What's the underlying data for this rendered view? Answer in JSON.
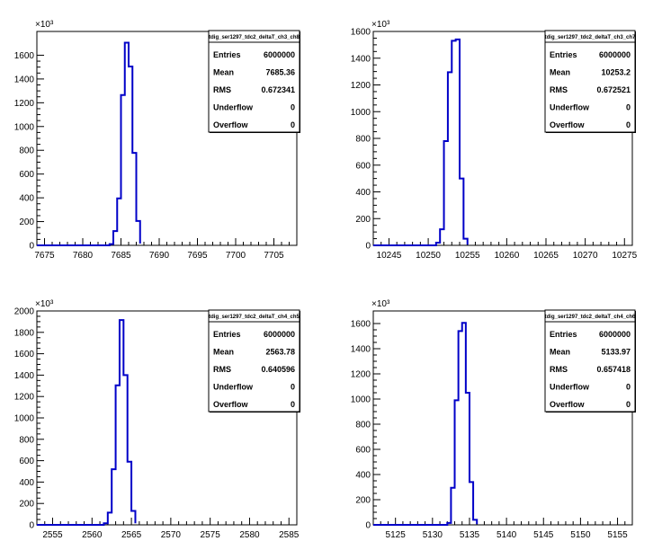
{
  "chart_data": [
    {
      "type": "bar",
      "title": "tdig_ser1297_tdc2_deltaT_ch3_ch8",
      "exponent_label": "×10³",
      "xlim": [
        7674,
        7708
      ],
      "ylim": [
        0,
        1800
      ],
      "xticks": [
        7675,
        7680,
        7685,
        7690,
        7695,
        7700,
        7705
      ],
      "yticks": [
        0,
        200,
        400,
        600,
        800,
        1000,
        1200,
        1400,
        1600
      ],
      "bins": {
        "edges": [
          7683.5,
          7684,
          7684.5,
          7685,
          7685.5,
          7686,
          7686.5,
          7687,
          7687.5
        ],
        "values": [
          10,
          120,
          395,
          1265,
          1705,
          1505,
          778,
          205,
          15
        ]
      },
      "stats": [
        {
          "label": "Entries",
          "value": "6000000"
        },
        {
          "label": "Mean",
          "value": "7685.36"
        },
        {
          "label": "RMS",
          "value": "0.672341"
        },
        {
          "label": "Underflow",
          "value": "0"
        },
        {
          "label": "Overflow",
          "value": "0"
        }
      ]
    },
    {
      "type": "bar",
      "title": "tdig_ser1297_tdc2_deltaT_ch3_ch7",
      "exponent_label": "×10³",
      "xlim": [
        10243,
        10276
      ],
      "ylim": [
        0,
        1600
      ],
      "xticks": [
        10245,
        10250,
        10255,
        10260,
        10265,
        10270,
        10275
      ],
      "yticks": [
        0,
        200,
        400,
        600,
        800,
        1000,
        1200,
        1400,
        1600
      ],
      "bins": {
        "edges": [
          10251,
          10251.5,
          10252,
          10252.5,
          10253,
          10253.5,
          10254,
          10254.5,
          10255
        ],
        "values": [
          20,
          120,
          780,
          1295,
          1530,
          1540,
          500,
          50,
          5
        ]
      },
      "stats": [
        {
          "label": "Entries",
          "value": "6000000"
        },
        {
          "label": "Mean",
          "value": "10253.2"
        },
        {
          "label": "RMS",
          "value": "0.672521"
        },
        {
          "label": "Underflow",
          "value": "0"
        },
        {
          "label": "Overflow",
          "value": "0"
        }
      ]
    },
    {
      "type": "bar",
      "title": "tdig_ser1297_tdc2_deltaT_ch4_ch5",
      "exponent_label": "×10³",
      "xlim": [
        2553,
        2586
      ],
      "ylim": [
        0,
        2000
      ],
      "xticks": [
        2555,
        2560,
        2565,
        2570,
        2575,
        2580,
        2585
      ],
      "yticks": [
        0,
        200,
        400,
        600,
        800,
        1000,
        1200,
        1400,
        1600,
        1800,
        2000
      ],
      "bins": {
        "edges": [
          2561.5,
          2562,
          2562.5,
          2563,
          2563.5,
          2564,
          2564.5,
          2565,
          2565.5
        ],
        "values": [
          15,
          115,
          520,
          1305,
          1915,
          1400,
          590,
          130,
          15
        ]
      },
      "stats": [
        {
          "label": "Entries",
          "value": "6000000"
        },
        {
          "label": "Mean",
          "value": "2563.78"
        },
        {
          "label": "RMS",
          "value": "0.640596"
        },
        {
          "label": "Underflow",
          "value": "0"
        },
        {
          "label": "Overflow",
          "value": "0"
        }
      ]
    },
    {
      "type": "bar",
      "title": "tdig_ser1297_tdc2_deltaT_ch4_ch6",
      "exponent_label": "×10³",
      "xlim": [
        5122,
        5157
      ],
      "ylim": [
        0,
        1700
      ],
      "xticks": [
        5125,
        5130,
        5135,
        5140,
        5145,
        5150,
        5155
      ],
      "yticks": [
        0,
        200,
        400,
        600,
        800,
        1000,
        1200,
        1400,
        1600
      ],
      "bins": {
        "edges": [
          5132,
          5132.5,
          5133,
          5133.5,
          5134,
          5134.5,
          5135,
          5135.5,
          5136
        ],
        "values": [
          15,
          295,
          990,
          1540,
          1605,
          1050,
          340,
          40,
          5
        ]
      },
      "stats": [
        {
          "label": "Entries",
          "value": "6000000"
        },
        {
          "label": "Mean",
          "value": "5133.97"
        },
        {
          "label": "RMS",
          "value": "0.657418"
        },
        {
          "label": "Underflow",
          "value": "0"
        },
        {
          "label": "Overflow",
          "value": "0"
        }
      ]
    }
  ]
}
